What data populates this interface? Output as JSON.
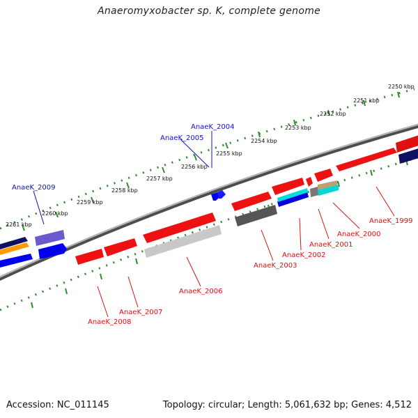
{
  "title": "Anaeromyxobacter sp. K, complete genome",
  "footer": {
    "accession": "Accession: NC_011145",
    "summary": "Topology: circular; Length: 5,061,632 bp; Genes: 4,512"
  },
  "colors": {
    "background": "#ffffff",
    "backbone": "#7a7a7a",
    "tick_marks": "#2e8b2e",
    "forward_label": "#1010bb",
    "reverse_label": "#dd1010"
  },
  "ticks": [
    {
      "label": "2250 kbp"
    },
    {
      "label": "2251 kbp"
    },
    {
      "label": "2252 kbp"
    },
    {
      "label": "2253 kbp"
    },
    {
      "label": "2254 kbp"
    },
    {
      "label": "2255 kbp"
    },
    {
      "label": "2256 kbp"
    },
    {
      "label": "2257 kbp"
    },
    {
      "label": "2258 kbp"
    },
    {
      "label": "2259 kbp"
    },
    {
      "label": "2260 kbp"
    },
    {
      "label": "2261 kbp"
    }
  ],
  "gene_labels": [
    {
      "text": "AnaeK_2004",
      "strand": "forward"
    },
    {
      "text": "AnaeK_2005",
      "strand": "forward"
    },
    {
      "text": "AnaeK_2009",
      "strand": "forward"
    },
    {
      "text": "AnaeK_1999",
      "strand": "reverse"
    },
    {
      "text": "AnaeK_2000",
      "strand": "reverse"
    },
    {
      "text": "AnaeK_2001",
      "strand": "reverse"
    },
    {
      "text": "AnaeK_2002",
      "strand": "reverse"
    },
    {
      "text": "AnaeK_2003",
      "strand": "reverse"
    },
    {
      "text": "AnaeK_2006",
      "strand": "reverse"
    },
    {
      "text": "AnaeK_2007",
      "strand": "reverse"
    },
    {
      "text": "AnaeK_2008",
      "strand": "reverse"
    }
  ]
}
